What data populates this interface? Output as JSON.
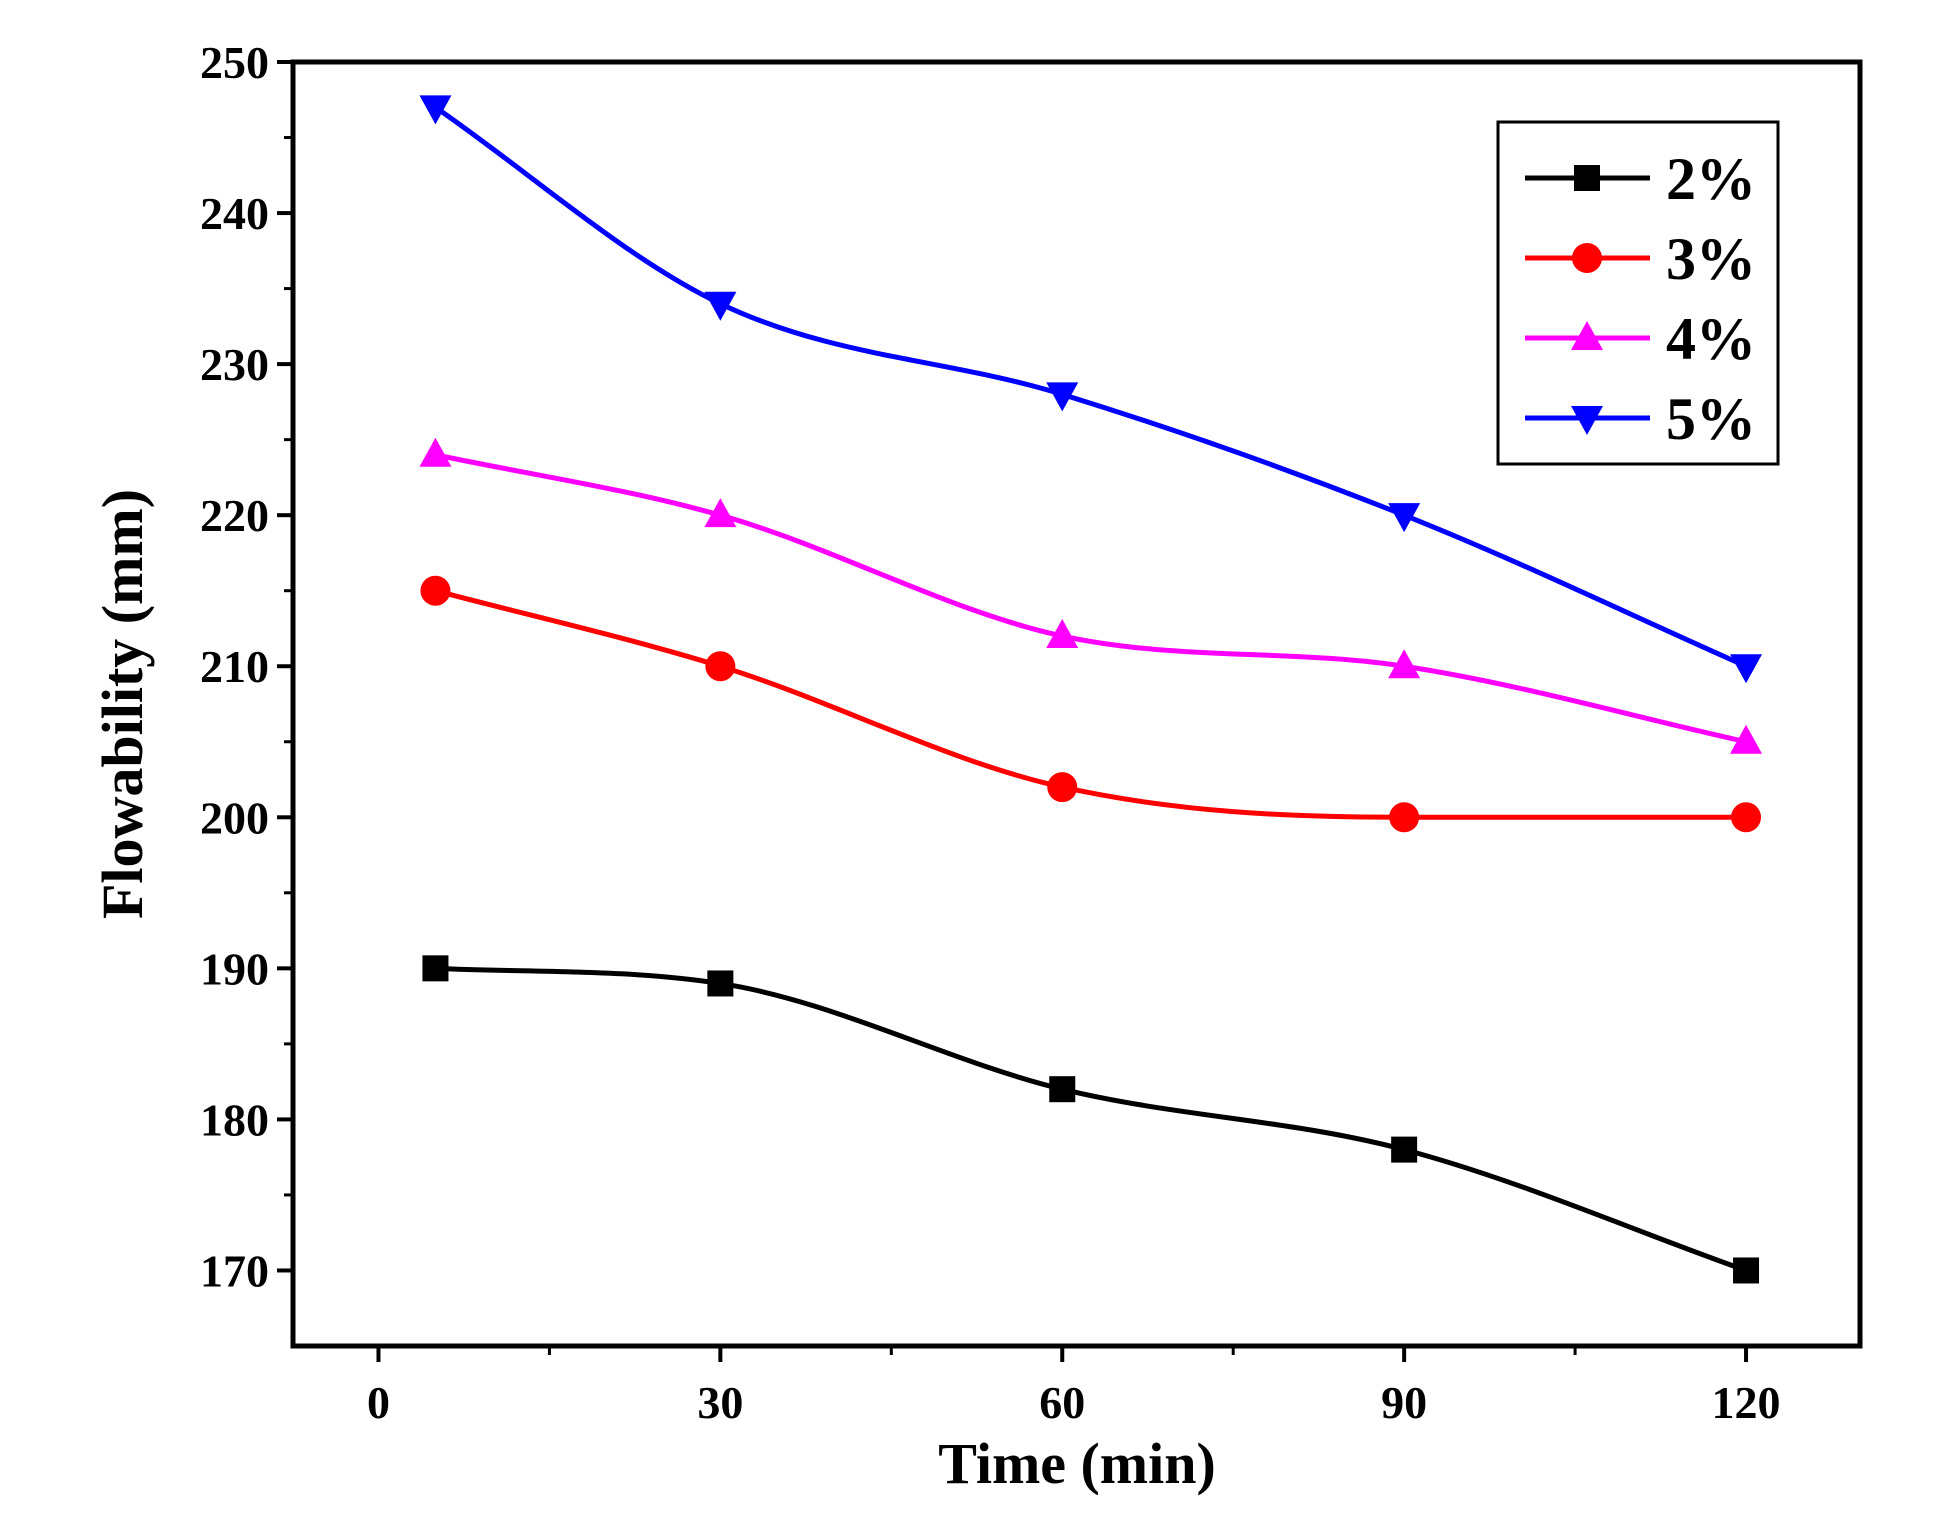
{
  "chart_data": {
    "type": "line",
    "title": "",
    "xlabel": "Time (min)",
    "ylabel": "Flowability (mm)",
    "xlim": [
      -7.5,
      130
    ],
    "ylim": [
      165,
      250
    ],
    "xticks": [
      0,
      30,
      60,
      90,
      120
    ],
    "yticks": [
      170,
      180,
      190,
      200,
      210,
      220,
      230,
      240,
      250
    ],
    "x": [
      5,
      30,
      60,
      90,
      120
    ],
    "series": [
      {
        "name": "2%",
        "color": "#000000",
        "marker": "square",
        "values": [
          190,
          189,
          182,
          178,
          170
        ]
      },
      {
        "name": "3%",
        "color": "#ff0000",
        "marker": "circle",
        "values": [
          215,
          210,
          202,
          200,
          200
        ]
      },
      {
        "name": "4%",
        "color": "#ff00ff",
        "marker": "triangle-up",
        "values": [
          224,
          220,
          212,
          210,
          205
        ]
      },
      {
        "name": "5%",
        "color": "#0000ff",
        "marker": "triangle-down",
        "values": [
          247,
          234,
          228,
          220,
          210
        ]
      }
    ],
    "grid": false,
    "legend": "top-right"
  }
}
